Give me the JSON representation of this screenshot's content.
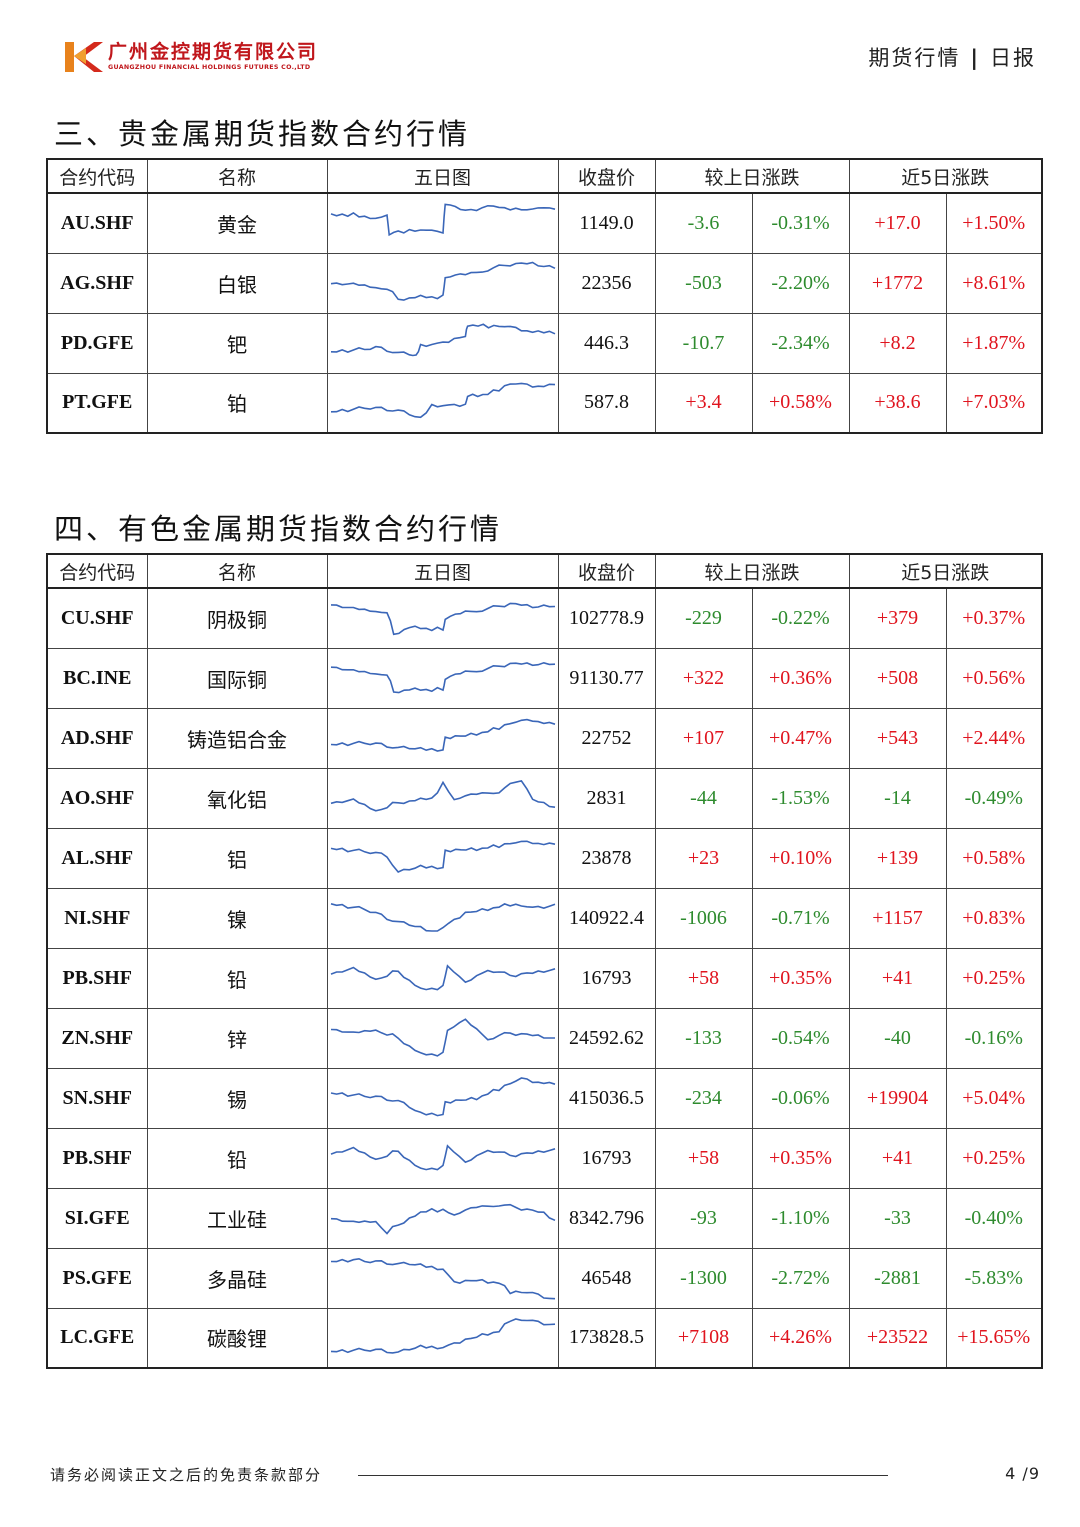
{
  "header": {
    "company_cn": "广州金控期货有限公司",
    "company_en": "GUANGZHOU FINANCIAL HOLDINGS FUTURES CO.,LTD",
    "report_type": "期货行情",
    "separator": "|",
    "frequency": "日报"
  },
  "colors": {
    "up": "#e0141e",
    "down": "#2e8b2e",
    "spark_line": "#3a66b8",
    "brand": "#c0171c"
  },
  "columns": [
    "合约代码",
    "名称",
    "五日图",
    "收盘价",
    "较上日涨跌",
    "近5日涨跌"
  ],
  "sections": [
    {
      "title": "三、贵金属期货指数合约行情",
      "rows": [
        {
          "code": "AU.SHF",
          "name": "黄金",
          "close": "1149.0",
          "chg": "-3.6",
          "chg_pct": "-0.31%",
          "chg5": "+17.0",
          "chg5_pct": "+1.50%"
        },
        {
          "code": "AG.SHF",
          "name": "白银",
          "close": "22356",
          "chg": "-503",
          "chg_pct": "-2.20%",
          "chg5": "+1772",
          "chg5_pct": "+8.61%"
        },
        {
          "code": "PD.GFE",
          "name": "钯",
          "close": "446.3",
          "chg": "-10.7",
          "chg_pct": "-2.34%",
          "chg5": "+8.2",
          "chg5_pct": "+1.87%"
        },
        {
          "code": "PT.GFE",
          "name": "铂",
          "close": "587.8",
          "chg": "+3.4",
          "chg_pct": "+0.58%",
          "chg5": "+38.6",
          "chg5_pct": "+7.03%"
        }
      ]
    },
    {
      "title": "四、有色金属期货指数合约行情",
      "rows": [
        {
          "code": "CU.SHF",
          "name": "阴极铜",
          "close": "102778.9",
          "chg": "-229",
          "chg_pct": "-0.22%",
          "chg5": "+379",
          "chg5_pct": "+0.37%"
        },
        {
          "code": "BC.INE",
          "name": "国际铜",
          "close": "91130.77",
          "chg": "+322",
          "chg_pct": "+0.36%",
          "chg5": "+508",
          "chg5_pct": "+0.56%"
        },
        {
          "code": "AD.SHF",
          "name": "铸造铝合金",
          "close": "22752",
          "chg": "+107",
          "chg_pct": "+0.47%",
          "chg5": "+543",
          "chg5_pct": "+2.44%"
        },
        {
          "code": "AO.SHF",
          "name": "氧化铝",
          "close": "2831",
          "chg": "-44",
          "chg_pct": "-1.53%",
          "chg5": "-14",
          "chg5_pct": "-0.49%"
        },
        {
          "code": "AL.SHF",
          "name": "铝",
          "close": "23878",
          "chg": "+23",
          "chg_pct": "+0.10%",
          "chg5": "+139",
          "chg5_pct": "+0.58%"
        },
        {
          "code": "NI.SHF",
          "name": "镍",
          "close": "140922.4",
          "chg": "-1006",
          "chg_pct": "-0.71%",
          "chg5": "+1157",
          "chg5_pct": "+0.83%"
        },
        {
          "code": "PB.SHF",
          "name": "铅",
          "close": "16793",
          "chg": "+58",
          "chg_pct": "+0.35%",
          "chg5": "+41",
          "chg5_pct": "+0.25%"
        },
        {
          "code": "ZN.SHF",
          "name": "锌",
          "close": "24592.62",
          "chg": "-133",
          "chg_pct": "-0.54%",
          "chg5": "-40",
          "chg5_pct": "-0.16%"
        },
        {
          "code": "SN.SHF",
          "name": "锡",
          "close": "415036.5",
          "chg": "-234",
          "chg_pct": "-0.06%",
          "chg5": "+19904",
          "chg5_pct": "+5.04%"
        },
        {
          "code": "PB.SHF",
          "name": "铅",
          "close": "16793",
          "chg": "+58",
          "chg_pct": "+0.35%",
          "chg5": "+41",
          "chg5_pct": "+0.25%"
        },
        {
          "code": "SI.GFE",
          "name": "工业硅",
          "close": "8342.796",
          "chg": "-93",
          "chg_pct": "-1.10%",
          "chg5": "-33",
          "chg5_pct": "-0.40%"
        },
        {
          "code": "PS.GFE",
          "name": "多晶硅",
          "close": "46548",
          "chg": "-1300",
          "chg_pct": "-2.72%",
          "chg5": "-2881",
          "chg5_pct": "-5.83%"
        },
        {
          "code": "LC.GFE",
          "name": "碳酸锂",
          "close": "173828.5",
          "chg": "+7108",
          "chg_pct": "+4.26%",
          "chg5": "+23522",
          "chg5_pct": "+15.65%"
        }
      ]
    }
  ],
  "footer": {
    "disclaimer_note": "请务必阅读正文之后的免责条款部分",
    "page": "4 /9"
  }
}
